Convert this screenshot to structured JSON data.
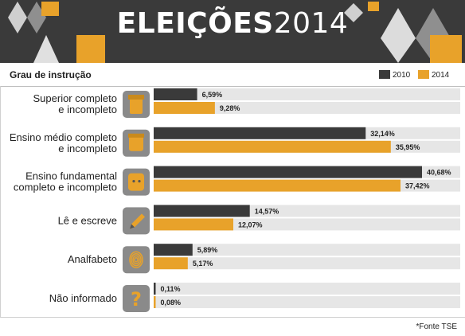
{
  "header": {
    "title_bold": "ELEIÇÕES",
    "title_year": "2014"
  },
  "subtitle": "Grau de instrução",
  "colors": {
    "series_2010": "#3a3a3a",
    "series_2014": "#e8a22a",
    "icon_bg": "#8a8a8a",
    "track": "#e6e6e6"
  },
  "source": "*Fonte TSE",
  "chart_data": {
    "type": "bar",
    "orientation": "horizontal",
    "categories": [
      [
        "Superior completo",
        "e incompleto"
      ],
      [
        "Ensino médio completo",
        "e incompleto"
      ],
      [
        "Ensino fundamental",
        "completo e incompleto"
      ],
      [
        "Lê e escreve"
      ],
      [
        "Analfabeto"
      ],
      [
        "Não informado"
      ]
    ],
    "icons": [
      "graduate-icon",
      "student-icon",
      "child-icon",
      "pencil-icon",
      "fingerprint-icon",
      "question-icon"
    ],
    "series": [
      {
        "name": "2010",
        "values": [
          6.59,
          32.14,
          40.68,
          14.57,
          5.89,
          0.11
        ],
        "labels": [
          "6,59%",
          "32,14%",
          "40,68%",
          "14,57%",
          "5,89%",
          "0,11%"
        ]
      },
      {
        "name": "2014",
        "values": [
          9.28,
          35.95,
          37.42,
          12.07,
          5.17,
          0.08
        ],
        "labels": [
          "9,28%",
          "35,95%",
          "37,42%",
          "12,07%",
          "5,17%",
          "0,08%"
        ]
      }
    ],
    "xlim": [
      0,
      40.68
    ],
    "legend": "top-right",
    "grid": false
  }
}
